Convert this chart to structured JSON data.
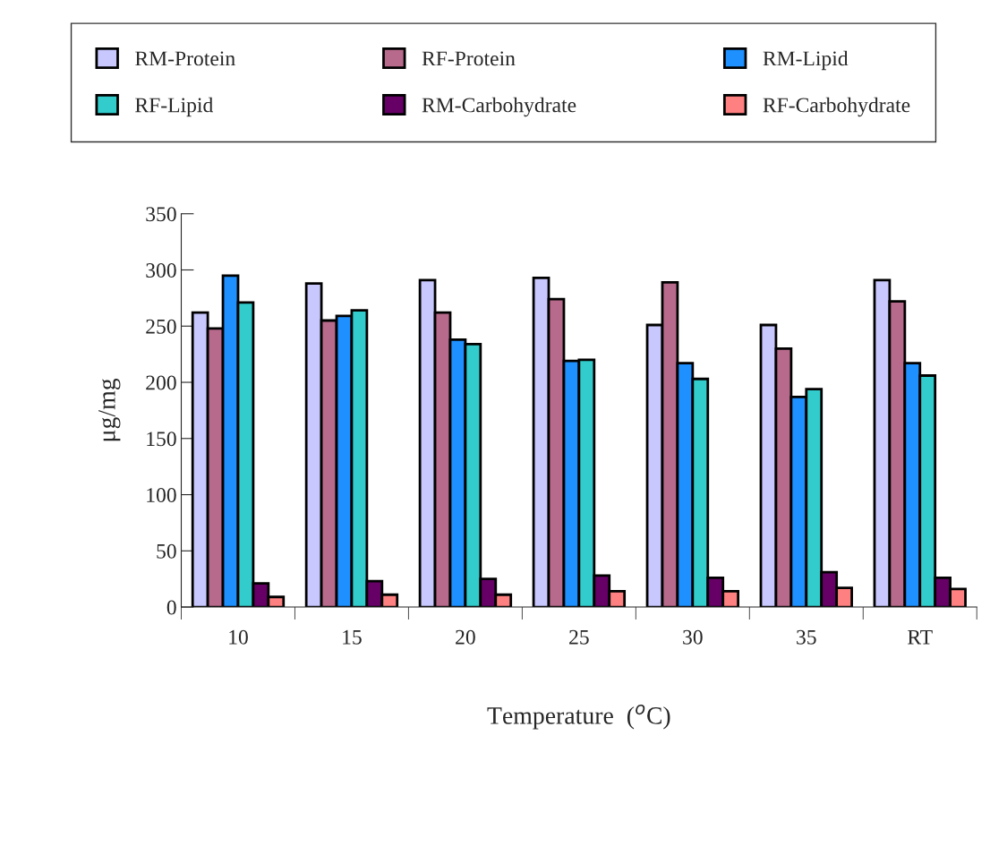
{
  "chart_data": {
    "type": "bar",
    "xlabel": "Temperature  ($^{o}$C)",
    "ylabel": "μg/mg",
    "categories": [
      "10",
      "15",
      "20",
      "25",
      "30",
      "35",
      "RT"
    ],
    "series": [
      {
        "name": "RM-Protein",
        "color": "#c8c8ff",
        "values": [
          262,
          288,
          291,
          293,
          251,
          251,
          291
        ]
      },
      {
        "name": "RF-Protein",
        "color": "#b86a8c",
        "values": [
          248,
          255,
          262,
          274,
          289,
          230,
          272
        ]
      },
      {
        "name": "RM-Lipid",
        "color": "#1e90ff",
        "values": [
          295,
          259,
          238,
          219,
          217,
          187,
          217
        ]
      },
      {
        "name": "RF-Lipid",
        "color": "#33cccc",
        "values": [
          271,
          264,
          234,
          220,
          203,
          194,
          206
        ]
      },
      {
        "name": "RM-Carbohydrate",
        "color": "#660066",
        "values": [
          21,
          23,
          25,
          28,
          26,
          31,
          26
        ]
      },
      {
        "name": "RF-Carbohydrate",
        "color": "#ff8080",
        "values": [
          9,
          11,
          11,
          14,
          14,
          17,
          16
        ]
      }
    ],
    "ylim": [
      0,
      350
    ],
    "yticks": [
      0,
      50,
      100,
      150,
      200,
      250,
      300,
      350
    ],
    "grid": false,
    "legend": "top"
  }
}
